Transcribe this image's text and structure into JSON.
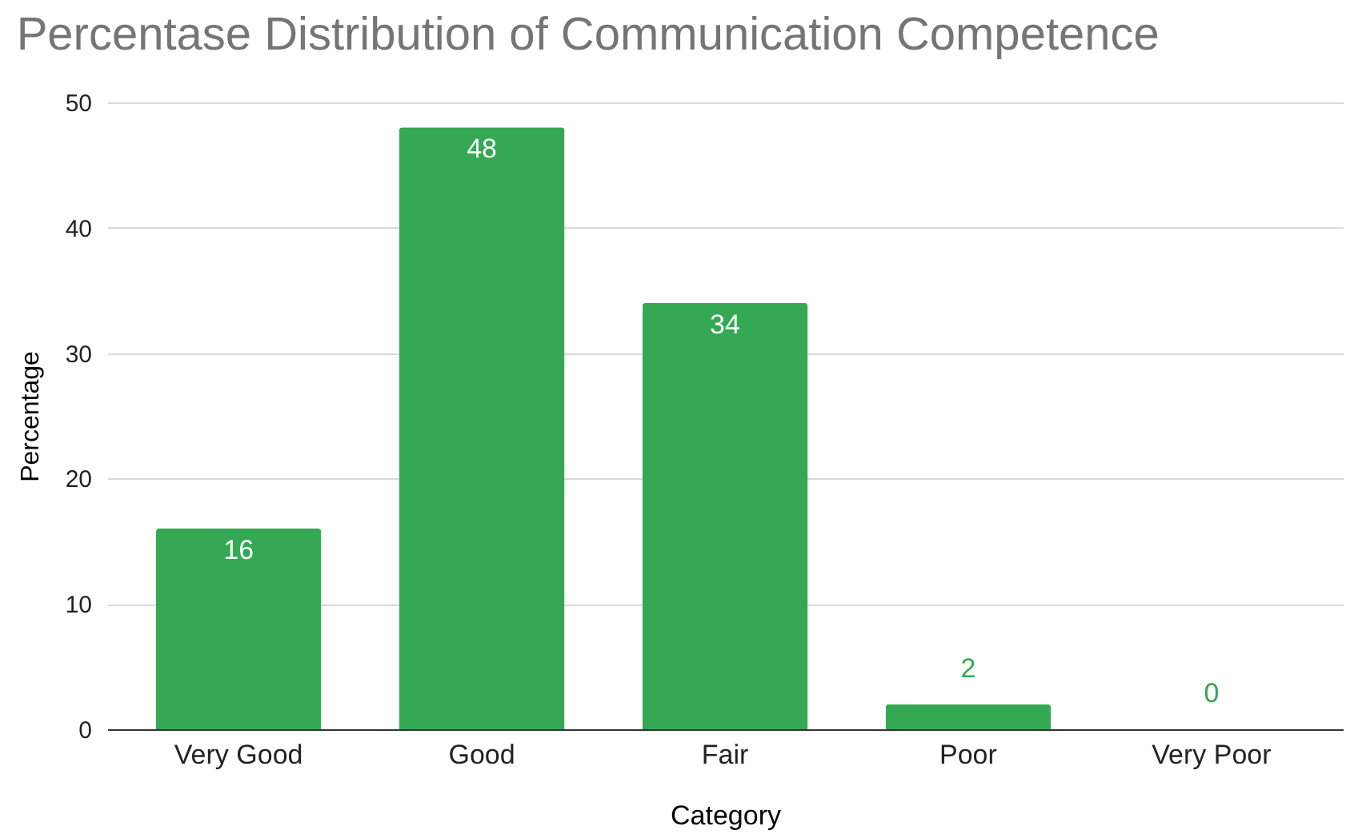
{
  "chart_data": {
    "type": "bar",
    "title": "Percentase Distribution of Communication Competence",
    "categories": [
      "Very Good",
      "Good",
      "Fair",
      "Poor",
      "Very Poor"
    ],
    "values": [
      16,
      48,
      34,
      2,
      0
    ],
    "color": "#34a853",
    "xlabel": "Category",
    "ylabel": "Percentage",
    "ylim": [
      0,
      50
    ],
    "yticks": [
      0,
      10,
      20,
      30,
      40,
      50
    ],
    "grid": "y",
    "data_labels": true
  }
}
